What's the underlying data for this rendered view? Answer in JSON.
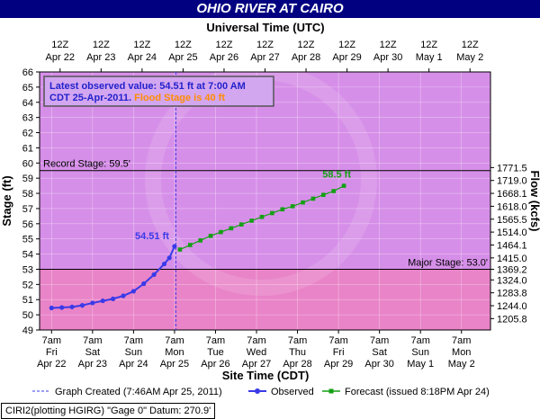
{
  "title": "OHIO RIVER AT CAIRO",
  "top_axis_title": "Universal Time (UTC)",
  "bottom_axis_title": "Site Time (CDT)",
  "left_axis_title": "Stage (ft)",
  "right_axis_title": "Flow (kcfs)",
  "info_box": {
    "line1": "Latest observed value: 54.51 ft at 7:00 AM",
    "line2_date": "CDT 25-Apr-2011.",
    "line2_flood": "Flood Stage is 40 ft"
  },
  "footer": "CIRI2(plotting HGIRG) \"Gage 0\" Datum: 270.9'",
  "colors": {
    "title_bg": "#000080",
    "upper_band": "#d68fe8",
    "major_band": "#e984c8",
    "observed": "#3a3ae8",
    "forecast": "#13a013",
    "flood_text": "#ff8c00",
    "info_text": "#2222cc"
  },
  "chart_data": {
    "type": "line",
    "x_range_days": [
      "Apr 22 00:00",
      "May 3 00:00"
    ],
    "ylim": [
      49,
      66
    ],
    "y_ticks": [
      49,
      50,
      51,
      52,
      53,
      54,
      55,
      56,
      57,
      58,
      59,
      60,
      61,
      62,
      63,
      64,
      65,
      66
    ],
    "flow_ticks": [
      {
        "label": "1205.8",
        "stage": 49.75
      },
      {
        "label": "1244.0",
        "stage": 50.6
      },
      {
        "label": "1283.8",
        "stage": 51.45
      },
      {
        "label": "1324.0",
        "stage": 52.3
      },
      {
        "label": "1369.2",
        "stage": 53.0
      },
      {
        "label": "1415.0",
        "stage": 53.75
      },
      {
        "label": "1464.1",
        "stage": 54.6
      },
      {
        "label": "1514.0",
        "stage": 55.45
      },
      {
        "label": "1565.5",
        "stage": 56.3
      },
      {
        "label": "1618.0",
        "stage": 57.15
      },
      {
        "label": "1668.1",
        "stage": 58.0
      },
      {
        "label": "1719.0",
        "stage": 58.85
      },
      {
        "label": "1771.5",
        "stage": 59.7
      }
    ],
    "top_ticks": [
      {
        "hour": "12Z",
        "date": "Apr 22"
      },
      {
        "hour": "12Z",
        "date": "Apr 23"
      },
      {
        "hour": "12Z",
        "date": "Apr 24"
      },
      {
        "hour": "12Z",
        "date": "Apr 25"
      },
      {
        "hour": "12Z",
        "date": "Apr 26"
      },
      {
        "hour": "12Z",
        "date": "Apr 27"
      },
      {
        "hour": "12Z",
        "date": "Apr 28"
      },
      {
        "hour": "12Z",
        "date": "Apr 29"
      },
      {
        "hour": "12Z",
        "date": "Apr 30"
      },
      {
        "hour": "12Z",
        "date": "May 1"
      },
      {
        "hour": "12Z",
        "date": "May  2"
      }
    ],
    "bottom_ticks": [
      {
        "time": "7am",
        "day": "Fri",
        "date": "Apr 22"
      },
      {
        "time": "7am",
        "day": "Sat",
        "date": "Apr 23"
      },
      {
        "time": "7am",
        "day": "Sun",
        "date": "Apr 24"
      },
      {
        "time": "7am",
        "day": "Mon",
        "date": "Apr 25"
      },
      {
        "time": "7am",
        "day": "Tue",
        "date": "Apr 26"
      },
      {
        "time": "7am",
        "day": "Wed",
        "date": "Apr 27"
      },
      {
        "time": "7am",
        "day": "Thu",
        "date": "Apr 28"
      },
      {
        "time": "7am",
        "day": "Fri",
        "date": "Apr 29"
      },
      {
        "time": "7am",
        "day": "Sat",
        "date": "Apr 30"
      },
      {
        "time": "7am",
        "day": "Sun",
        "date": "May 1"
      },
      {
        "time": "7am",
        "day": "Mon",
        "date": "May 2"
      }
    ],
    "record_stage": {
      "label": "Record Stage: 59.5'",
      "value": 59.5
    },
    "major_stage": {
      "label": "Major Stage: 53.0'",
      "value": 53.0
    },
    "graph_created_time": "Apr 25 07:46",
    "observed": {
      "name": "Observed",
      "label": "54.51 ft",
      "points": [
        [
          "Apr 22 07:00",
          50.45
        ],
        [
          "Apr 22 13:00",
          50.48
        ],
        [
          "Apr 22 19:00",
          50.52
        ],
        [
          "Apr 23 01:00",
          50.62
        ],
        [
          "Apr 23 07:00",
          50.78
        ],
        [
          "Apr 23 13:00",
          50.92
        ],
        [
          "Apr 23 19:00",
          51.05
        ],
        [
          "Apr 24 01:00",
          51.25
        ],
        [
          "Apr 24 07:00",
          51.55
        ],
        [
          "Apr 24 13:00",
          52.05
        ],
        [
          "Apr 24 19:00",
          52.65
        ],
        [
          "Apr 25 01:00",
          53.35
        ],
        [
          "Apr 25 04:00",
          53.75
        ],
        [
          "Apr 25 07:00",
          54.51
        ]
      ]
    },
    "forecast": {
      "name": "Forecast (issued 8:18PM Apr 24)",
      "label": "58.5 ft",
      "points": [
        [
          "Apr 25 07:00",
          54.3
        ],
        [
          "Apr 25 13:00",
          54.6
        ],
        [
          "Apr 25 19:00",
          54.9
        ],
        [
          "Apr 26 01:00",
          55.2
        ],
        [
          "Apr 26 07:00",
          55.45
        ],
        [
          "Apr 26 13:00",
          55.7
        ],
        [
          "Apr 26 19:00",
          55.95
        ],
        [
          "Apr 27 01:00",
          56.2
        ],
        [
          "Apr 27 07:00",
          56.45
        ],
        [
          "Apr 27 13:00",
          56.7
        ],
        [
          "Apr 27 19:00",
          56.95
        ],
        [
          "Apr 28 01:00",
          57.15
        ],
        [
          "Apr 28 07:00",
          57.4
        ],
        [
          "Apr 28 13:00",
          57.65
        ],
        [
          "Apr 28 19:00",
          57.9
        ],
        [
          "Apr 29 01:00",
          58.15
        ],
        [
          "Apr 29 07:00",
          58.5
        ]
      ]
    },
    "legend": [
      {
        "key": "graph_created",
        "label": "Graph Created (7:46AM Apr 25, 2011)"
      },
      {
        "key": "observed",
        "label": "Observed"
      },
      {
        "key": "forecast",
        "label": "Forecast (issued 8:18PM Apr 24)"
      }
    ],
    "legend_position": "bottom"
  }
}
